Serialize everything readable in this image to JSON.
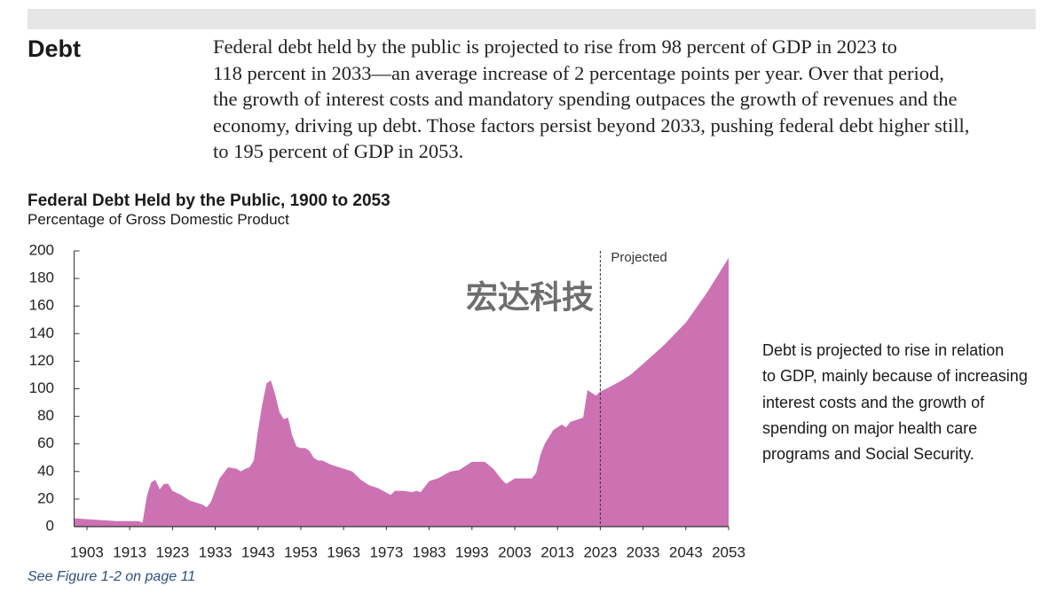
{
  "heading": "Debt",
  "paragraph_lines": [
    "Federal debt held by the public is projected to rise from 98 percent of GDP in 2023 to",
    "118 percent in 2033—an average increase of 2 percentage points per year. Over that period,",
    "the growth of interest costs and mandatory spending outpaces the growth of revenues and the",
    "economy, driving up debt. Those factors persist beyond 2033, pushing federal debt higher still,",
    "to 195 percent of GDP in 2053."
  ],
  "chart_data": {
    "type": "area",
    "title": "Federal Debt Held by the Public, 1900 to 2053",
    "subtitle": "Percentage of Gross Domestic Product",
    "watermark": "宏达科技",
    "color": "#cc72b3",
    "x": [
      1900,
      1905,
      1910,
      1915,
      1916,
      1917,
      1918,
      1919,
      1920,
      1921,
      1922,
      1923,
      1925,
      1927,
      1930,
      1931,
      1932,
      1934,
      1936,
      1938,
      1939,
      1940,
      1941,
      1942,
      1943,
      1944,
      1945,
      1946,
      1947,
      1948,
      1949,
      1950,
      1951,
      1952,
      1953,
      1954,
      1955,
      1956,
      1957,
      1958,
      1960,
      1962,
      1965,
      1967,
      1969,
      1971,
      1974,
      1975,
      1977,
      1979,
      1980,
      1981,
      1983,
      1985,
      1988,
      1990,
      1993,
      1996,
      1998,
      2000,
      2001,
      2003,
      2007,
      2008,
      2009,
      2010,
      2011,
      2012,
      2014,
      2015,
      2016,
      2019,
      2020,
      2021,
      2022,
      2023,
      2025,
      2028,
      2030,
      2033,
      2038,
      2043,
      2048,
      2053
    ],
    "values": [
      6,
      5,
      4,
      4,
      3,
      22,
      32,
      34,
      27,
      31,
      31,
      26,
      23,
      19,
      16,
      14,
      18,
      35,
      43,
      42,
      40,
      42,
      43,
      48,
      70,
      89,
      104,
      106,
      96,
      83,
      78,
      79,
      66,
      58,
      57,
      57,
      55,
      50,
      48,
      48,
      45,
      43,
      40,
      34,
      30,
      28,
      23,
      26,
      26,
      25,
      26,
      25,
      33,
      35,
      40,
      41,
      47,
      47,
      42,
      34,
      31,
      35,
      35,
      39,
      52,
      60,
      65,
      70,
      74,
      72,
      76,
      79,
      99,
      97,
      95,
      98,
      101,
      106,
      110,
      118,
      132,
      148,
      170,
      195
    ],
    "xlim": [
      1900,
      2053
    ],
    "ylim": [
      0,
      200
    ],
    "xticks": [
      1903,
      1913,
      1923,
      1933,
      1943,
      1953,
      1963,
      1973,
      1983,
      1993,
      2003,
      2013,
      2023,
      2033,
      2043,
      2053
    ],
    "yticks": [
      0,
      20,
      40,
      60,
      80,
      100,
      120,
      140,
      160,
      180,
      200
    ],
    "projection": {
      "label": "Projected",
      "x": 2023
    },
    "annotation_lines": [
      "Debt is projected to rise in relation",
      "to GDP, mainly because of increasing",
      "interest costs and the growth of",
      "spending on major health care",
      "programs and Social Security."
    ]
  },
  "footer": "See Figure 1-2 on page 11"
}
